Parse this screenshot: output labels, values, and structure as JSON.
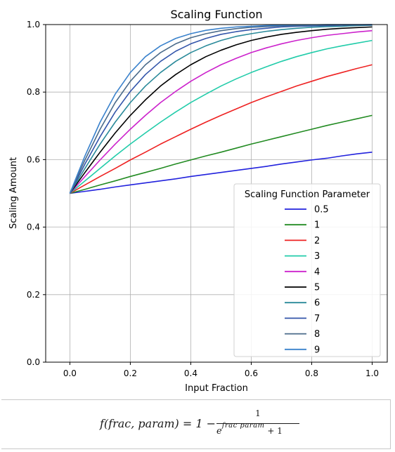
{
  "chart_data": {
    "type": "line",
    "title": "Scaling Function",
    "xlabel": "Input Fraction",
    "ylabel": "Scaling Amount",
    "xlim": [
      -0.08,
      1.05
    ],
    "ylim": [
      0.0,
      1.0
    ],
    "xticks": [
      "0.0",
      "0.2",
      "0.4",
      "0.6",
      "0.8",
      "1.0"
    ],
    "yticks": [
      "0.0",
      "0.2",
      "0.4",
      "0.6",
      "0.8",
      "1.0"
    ],
    "grid": true,
    "legend": {
      "title": "Scaling Function Parameter",
      "placement": "lower-right"
    },
    "x": [
      0.0,
      0.05,
      0.1,
      0.15,
      0.2,
      0.25,
      0.3,
      0.35,
      0.4,
      0.45,
      0.5,
      0.55,
      0.6,
      0.65,
      0.7,
      0.75,
      0.8,
      0.85,
      0.9,
      0.95,
      1.0
    ],
    "series": [
      {
        "name": "0.5",
        "color": "#2222dd",
        "values": [
          0.5,
          0.506,
          0.512,
          0.519,
          0.525,
          0.531,
          0.537,
          0.543,
          0.55,
          0.556,
          0.562,
          0.568,
          0.574,
          0.58,
          0.587,
          0.593,
          0.599,
          0.604,
          0.611,
          0.617,
          0.622
        ]
      },
      {
        "name": "1",
        "color": "#228b22",
        "values": [
          0.5,
          0.512,
          0.525,
          0.537,
          0.55,
          0.562,
          0.574,
          0.587,
          0.599,
          0.611,
          0.622,
          0.634,
          0.646,
          0.657,
          0.668,
          0.679,
          0.69,
          0.701,
          0.711,
          0.721,
          0.731
        ]
      },
      {
        "name": "2",
        "color": "#ee2222",
        "values": [
          0.5,
          0.525,
          0.55,
          0.574,
          0.599,
          0.622,
          0.646,
          0.668,
          0.69,
          0.711,
          0.731,
          0.75,
          0.769,
          0.786,
          0.802,
          0.818,
          0.832,
          0.846,
          0.858,
          0.87,
          0.881
        ]
      },
      {
        "name": "3",
        "color": "#22ccaa",
        "values": [
          0.5,
          0.537,
          0.574,
          0.611,
          0.646,
          0.679,
          0.711,
          0.741,
          0.769,
          0.794,
          0.818,
          0.839,
          0.858,
          0.875,
          0.891,
          0.905,
          0.917,
          0.928,
          0.937,
          0.945,
          0.953
        ]
      },
      {
        "name": "4",
        "color": "#cc22cc",
        "values": [
          0.5,
          0.55,
          0.599,
          0.646,
          0.69,
          0.731,
          0.769,
          0.802,
          0.832,
          0.858,
          0.881,
          0.9,
          0.917,
          0.931,
          0.943,
          0.953,
          0.961,
          0.968,
          0.973,
          0.978,
          0.982
        ]
      },
      {
        "name": "5",
        "color": "#000000",
        "values": [
          0.5,
          0.562,
          0.622,
          0.679,
          0.731,
          0.777,
          0.818,
          0.852,
          0.881,
          0.905,
          0.924,
          0.94,
          0.953,
          0.963,
          0.971,
          0.977,
          0.982,
          0.986,
          0.989,
          0.991,
          0.993
        ]
      },
      {
        "name": "6",
        "color": "#2a8a9a",
        "values": [
          0.5,
          0.574,
          0.646,
          0.711,
          0.769,
          0.818,
          0.858,
          0.891,
          0.917,
          0.937,
          0.953,
          0.965,
          0.973,
          0.98,
          0.985,
          0.989,
          0.992,
          0.994,
          0.995,
          0.997,
          0.998
        ]
      },
      {
        "name": "7",
        "color": "#3355aa",
        "values": [
          0.5,
          0.587,
          0.668,
          0.741,
          0.802,
          0.852,
          0.891,
          0.921,
          0.943,
          0.959,
          0.971,
          0.979,
          0.985,
          0.989,
          0.993,
          0.995,
          0.996,
          0.997,
          0.998,
          0.999,
          0.999
        ]
      },
      {
        "name": "8",
        "color": "#4a6a8a",
        "values": [
          0.5,
          0.599,
          0.69,
          0.769,
          0.832,
          0.881,
          0.917,
          0.943,
          0.961,
          0.973,
          0.982,
          0.988,
          0.992,
          0.994,
          0.996,
          0.997,
          0.998,
          0.999,
          0.999,
          0.999,
          1.0
        ]
      },
      {
        "name": "9",
        "color": "#3a82cc",
        "values": [
          0.5,
          0.611,
          0.711,
          0.794,
          0.858,
          0.905,
          0.937,
          0.959,
          0.973,
          0.983,
          0.989,
          0.993,
          0.995,
          0.997,
          0.998,
          0.999,
          0.999,
          1.0,
          1.0,
          1.0,
          1.0
        ]
      }
    ]
  },
  "formula": {
    "lhs": "f(frac, param) = 1 −",
    "numerator": "1",
    "base": "e",
    "exponent": "frac  param",
    "plus": "+ 1"
  }
}
